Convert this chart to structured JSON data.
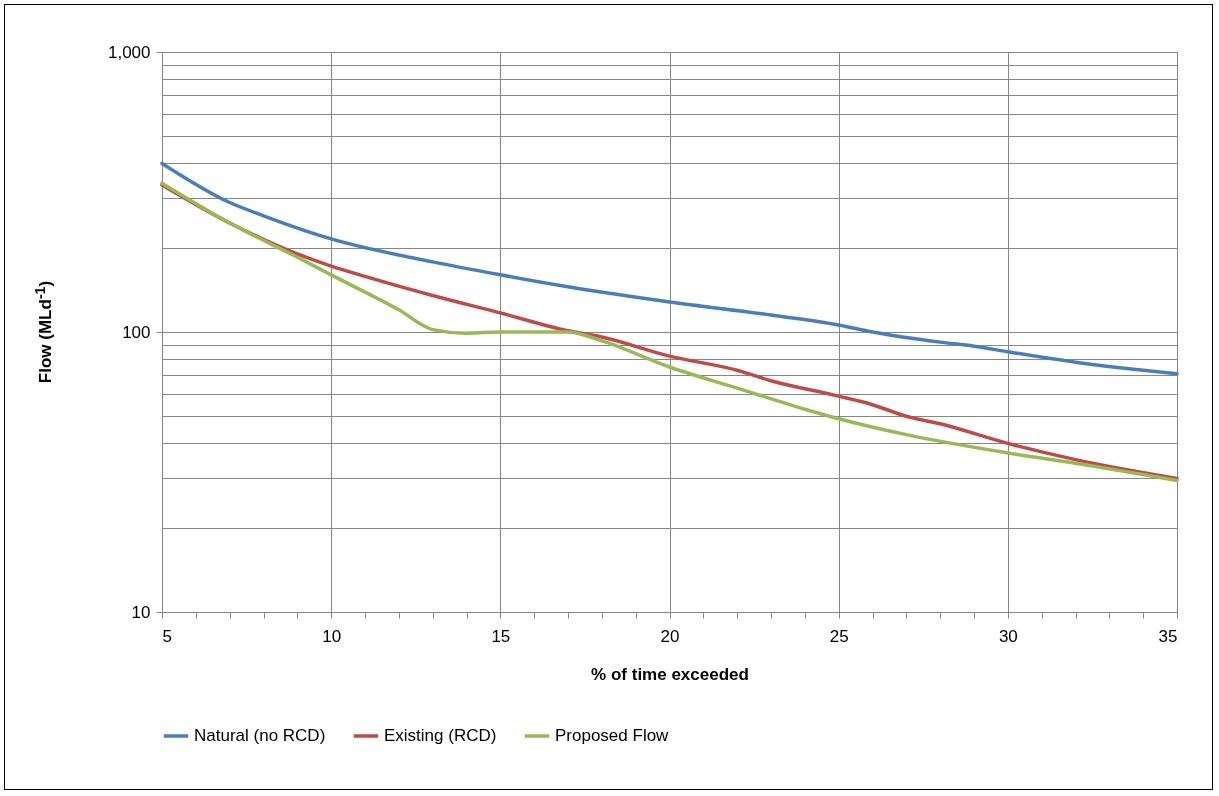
{
  "chart_data": {
    "type": "line",
    "xlabel": "% of time exceeded",
    "ylabel": "Flow (MLd$^{-1}$)",
    "log": "y",
    "grid": true,
    "legend": "bottom",
    "line_style": "solid",
    "marker": "none",
    "xlim": [
      5,
      35
    ],
    "ylim": [
      10,
      1000
    ],
    "xticks": [
      5,
      {
        "value": 6,
        "label": null
      },
      {
        "value": 7,
        "label": null
      },
      {
        "value": 8,
        "label": null
      },
      {
        "value": 9,
        "label": null
      },
      10,
      {
        "value": 11,
        "label": null
      },
      {
        "value": 12,
        "label": null
      },
      {
        "value": 13,
        "label": null
      },
      {
        "value": 14,
        "label": null
      },
      15,
      {
        "value": 16,
        "label": null
      },
      {
        "value": 17,
        "label": null
      },
      {
        "value": 18,
        "label": null
      },
      {
        "value": 19,
        "label": null
      },
      20,
      {
        "value": 21,
        "label": null
      },
      {
        "value": 22,
        "label": null
      },
      {
        "value": 23,
        "label": null
      },
      {
        "value": 24,
        "label": null
      },
      25,
      {
        "value": 26,
        "label": null
      },
      {
        "value": 27,
        "label": null
      },
      {
        "value": 28,
        "label": null
      },
      {
        "value": 29,
        "label": null
      },
      30,
      {
        "value": 31,
        "label": null
      },
      {
        "value": 32,
        "label": null
      },
      {
        "value": 33,
        "label": null
      },
      {
        "value": 34,
        "label": null
      },
      35
    ],
    "yticks": [
      10,
      {
        "value": 20,
        "label": null
      },
      {
        "value": 30,
        "label": null
      },
      {
        "value": 40,
        "label": null
      },
      {
        "value": 50,
        "label": null
      },
      {
        "value": 60,
        "label": null
      },
      {
        "value": 70,
        "label": null
      },
      {
        "value": 80,
        "label": null
      },
      {
        "value": 90,
        "label": null
      },
      100,
      {
        "value": 200,
        "label": null
      },
      {
        "value": 300,
        "label": null
      },
      {
        "value": 400,
        "label": null
      },
      {
        "value": 500,
        "label": null
      },
      {
        "value": 600,
        "label": null
      },
      {
        "value": 700,
        "label": null
      },
      {
        "value": 800,
        "label": null
      },
      {
        "value": 900,
        "label": null
      },
      {
        "value": 1000,
        "label": "1,000"
      }
    ],
    "series": [
      {
        "name": "Natural (no RCD)",
        "color": "#4a7ebb",
        "x": [
          5,
          7,
          8,
          10,
          13,
          15,
          17,
          20,
          23,
          25,
          26,
          28,
          29,
          30,
          32,
          34,
          35
        ],
        "values": [
          400,
          290,
          260,
          215,
          178,
          160,
          145,
          128,
          115,
          106,
          100,
          92,
          89,
          85,
          78,
          73,
          71
        ]
      },
      {
        "name": "Existing (RCD)",
        "color": "#be4b48",
        "x": [
          5,
          7,
          9,
          10,
          11,
          13,
          15,
          17,
          18,
          20,
          22,
          23,
          25,
          26,
          27,
          28,
          30,
          32,
          35
        ],
        "values": [
          335,
          245,
          190,
          172,
          158,
          135,
          117,
          101,
          96,
          82,
          73,
          67,
          59,
          55,
          50,
          47,
          40,
          35,
          30
        ]
      },
      {
        "name": "Proposed Flow",
        "color": "#98b954",
        "x": [
          5,
          7,
          9,
          10,
          12,
          13,
          14,
          15,
          17,
          18,
          20,
          22,
          24,
          25,
          27,
          30,
          32,
          35
        ],
        "values": [
          340,
          245,
          185,
          160,
          120,
          102,
          99,
          100,
          100,
          93,
          75,
          63,
          53,
          49,
          43,
          37,
          34,
          29.5
        ]
      }
    ]
  }
}
